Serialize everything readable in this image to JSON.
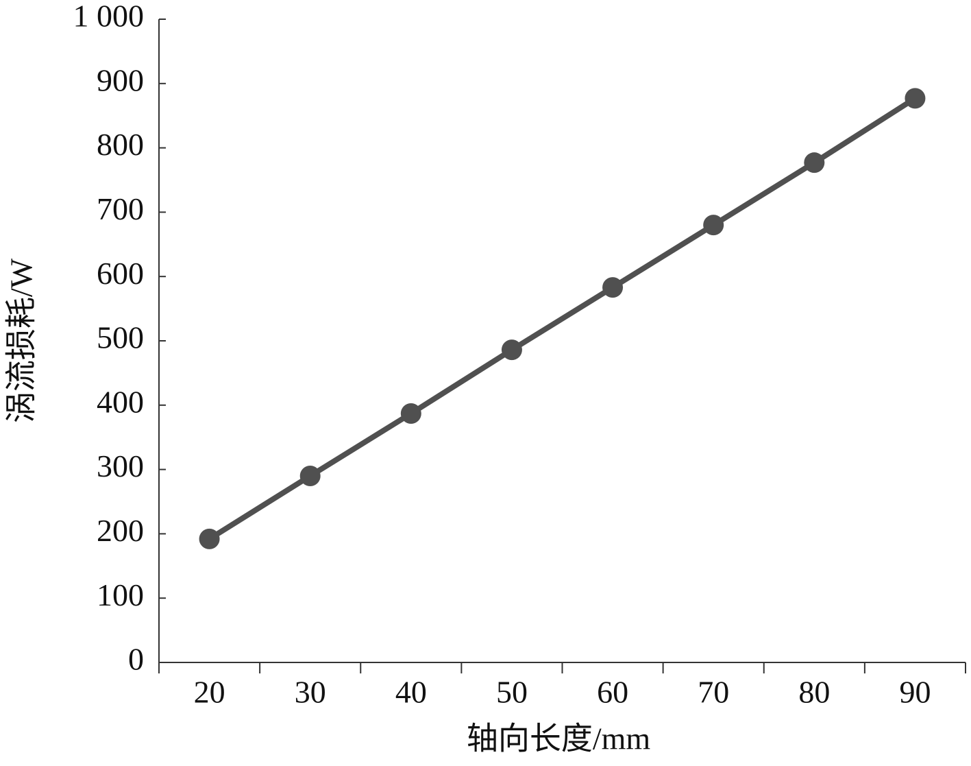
{
  "chart_data": {
    "type": "line",
    "x_label": "轴向长度/mm",
    "y_label": "涡流损耗/W",
    "categories": [
      "20",
      "30",
      "40",
      "50",
      "60",
      "70",
      "80",
      "90"
    ],
    "values": [
      192,
      290,
      387,
      486,
      583,
      680,
      777,
      877
    ],
    "color": "#505050",
    "ylim": [
      0,
      1000
    ],
    "yticks": [
      0,
      100,
      200,
      300,
      400,
      500,
      600,
      700,
      800,
      900,
      {
        "value": 1000,
        "label": "1 000"
      }
    ],
    "grid": false
  }
}
